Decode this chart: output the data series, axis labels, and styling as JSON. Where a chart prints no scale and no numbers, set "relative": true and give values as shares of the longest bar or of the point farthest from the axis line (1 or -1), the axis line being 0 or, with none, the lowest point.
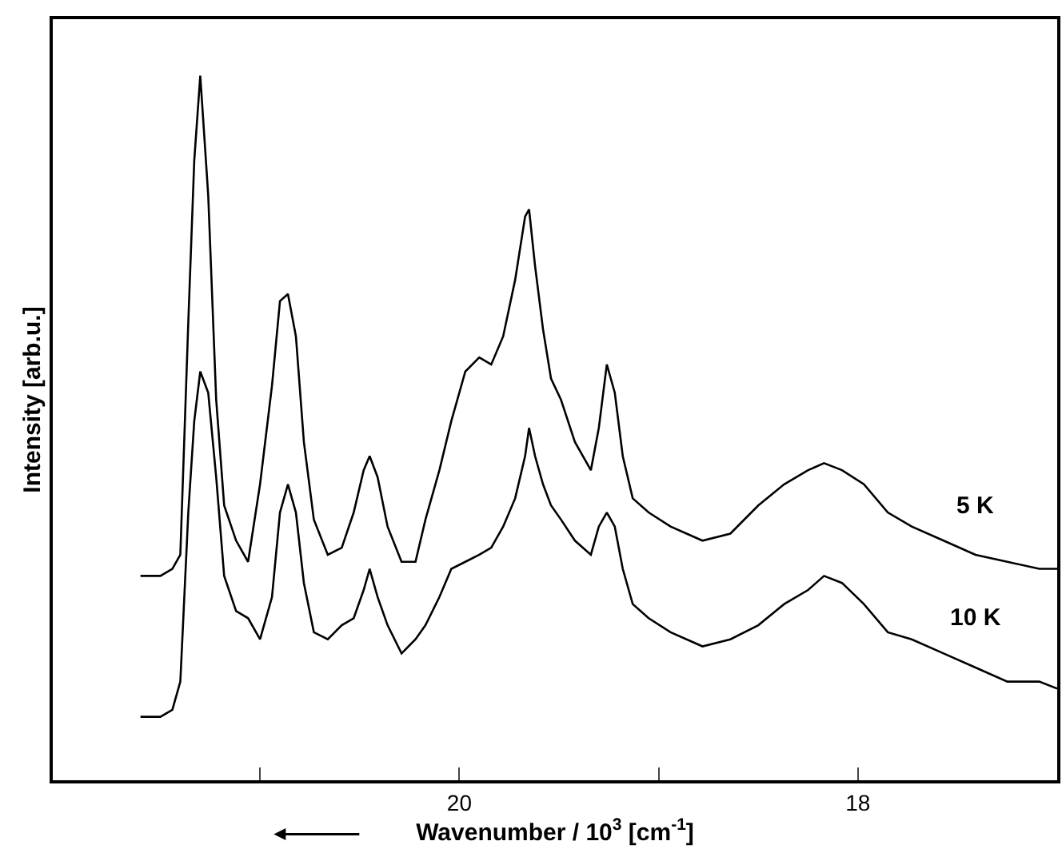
{
  "chart_data": {
    "type": "line",
    "relative": true,
    "xlabel": "Wavenumber / 10$^{3}$ [cm$^{-1}$]",
    "ylabel": "Intensity [arb.u.]",
    "xlim": [
      22.04,
      17.0
    ],
    "xticks": [
      {
        "value": 21,
        "label": null
      },
      20,
      {
        "value": 19,
        "label": null
      },
      18
    ],
    "x": [
      21.6,
      21.5,
      21.44,
      21.4,
      21.36,
      21.33,
      21.3,
      21.26,
      21.22,
      21.18,
      21.12,
      21.06,
      21.0,
      20.94,
      20.9,
      20.86,
      20.82,
      20.78,
      20.73,
      20.66,
      20.59,
      20.53,
      20.48,
      20.45,
      20.41,
      20.36,
      20.29,
      20.22,
      20.17,
      20.1,
      20.04,
      19.97,
      19.9,
      19.84,
      19.78,
      19.72,
      19.67,
      19.65,
      19.62,
      19.58,
      19.54,
      19.49,
      19.42,
      19.34,
      19.3,
      19.26,
      19.22,
      19.18,
      19.13,
      19.05,
      18.94,
      18.78,
      18.64,
      18.5,
      18.37,
      18.25,
      18.17,
      18.08,
      17.97,
      17.85,
      17.73,
      17.57,
      17.41,
      17.25,
      17.09,
      17.0
    ],
    "series": [
      {
        "name": "5 K",
        "color": "#000000",
        "values": [
          0.29,
          0.29,
          0.3,
          0.32,
          0.65,
          0.88,
          1.0,
          0.83,
          0.54,
          0.39,
          0.34,
          0.31,
          0.42,
          0.56,
          0.68,
          0.69,
          0.63,
          0.48,
          0.37,
          0.32,
          0.33,
          0.38,
          0.44,
          0.46,
          0.43,
          0.36,
          0.31,
          0.31,
          0.37,
          0.44,
          0.51,
          0.58,
          0.6,
          0.59,
          0.63,
          0.71,
          0.8,
          0.81,
          0.73,
          0.64,
          0.57,
          0.54,
          0.48,
          0.44,
          0.5,
          0.59,
          0.55,
          0.46,
          0.4,
          0.38,
          0.36,
          0.34,
          0.35,
          0.39,
          0.42,
          0.44,
          0.45,
          0.44,
          0.42,
          0.38,
          0.36,
          0.34,
          0.32,
          0.31,
          0.3,
          0.3
        ]
      },
      {
        "name": "10 K",
        "color": "#000000",
        "values": [
          0.09,
          0.09,
          0.1,
          0.14,
          0.38,
          0.51,
          0.58,
          0.55,
          0.43,
          0.29,
          0.24,
          0.23,
          0.2,
          0.26,
          0.38,
          0.42,
          0.38,
          0.28,
          0.21,
          0.2,
          0.22,
          0.23,
          0.27,
          0.3,
          0.26,
          0.22,
          0.18,
          0.2,
          0.22,
          0.26,
          0.3,
          0.31,
          0.32,
          0.33,
          0.36,
          0.4,
          0.46,
          0.5,
          0.46,
          0.42,
          0.39,
          0.37,
          0.34,
          0.32,
          0.36,
          0.38,
          0.36,
          0.3,
          0.25,
          0.23,
          0.21,
          0.19,
          0.2,
          0.22,
          0.25,
          0.27,
          0.29,
          0.28,
          0.25,
          0.21,
          0.2,
          0.18,
          0.16,
          0.14,
          0.14,
          0.13
        ]
      }
    ],
    "legend": false,
    "marker": "none",
    "line_style": "solid"
  }
}
